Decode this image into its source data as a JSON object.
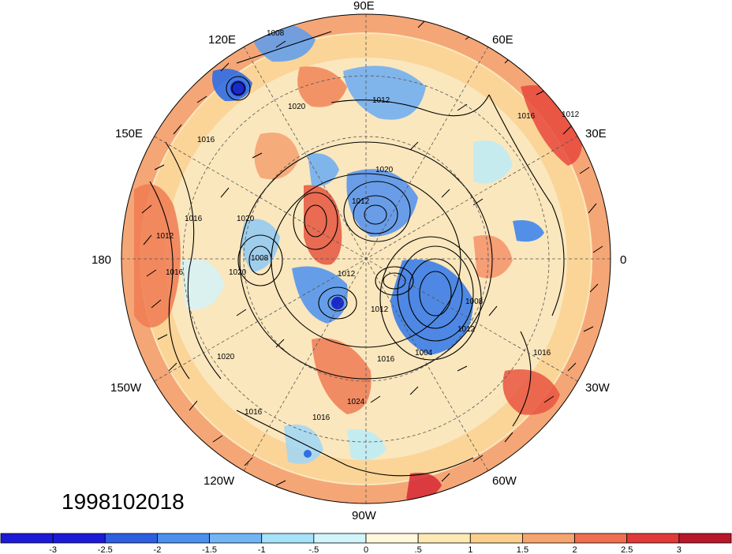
{
  "map": {
    "projection": "polar-stereographic-north",
    "date_stamp": "1998102018",
    "longitude_labels": [
      "90E",
      "60E",
      "30E",
      "0",
      "30W",
      "60W",
      "90W",
      "120W",
      "150W",
      "180",
      "150E",
      "120E"
    ],
    "contour_labels": [
      "1008",
      "1012",
      "1020",
      "1016",
      "1012",
      "1020",
      "1012",
      "1016",
      "1020",
      "1012",
      "1008",
      "1016",
      "1012",
      "1020",
      "1008",
      "1012",
      "1016",
      "1004",
      "1016",
      "1020",
      "1016",
      "1016",
      "1012",
      "1024",
      "1016"
    ],
    "colors": {
      "neg_strong": "#1f2fd0",
      "neg_mid": "#4b8ff0",
      "neg_light": "#b8ecfa",
      "neutral": "#fff8dc",
      "pos_light": "#fbd79a",
      "pos_mid": "#f08a5c",
      "pos_strong": "#d5282c"
    }
  },
  "colorbar": {
    "labels": [
      "-3",
      "-2.5",
      "-2",
      "-1.5",
      "-1",
      "-.5",
      "0",
      ".5",
      "1",
      "1.5",
      "2",
      "2.5",
      "3"
    ],
    "colors": [
      "#1c1ad6",
      "#2e5fe0",
      "#4a90ee",
      "#72b5f5",
      "#a6e2f8",
      "#d2f4fb",
      "#fff8dc",
      "#fde9b3",
      "#fbd08f",
      "#f6a56f",
      "#ef6f50",
      "#e0393a",
      "#b8182a"
    ]
  }
}
